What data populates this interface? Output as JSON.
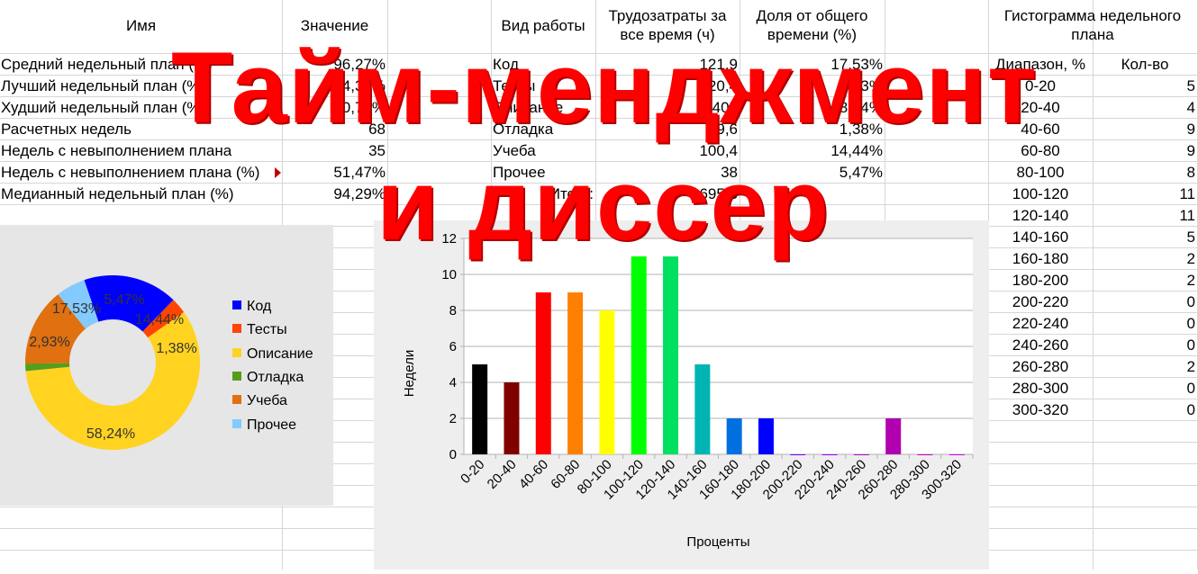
{
  "overlay": {
    "line1": "Тайм-менджмент",
    "line2": "и диссер"
  },
  "stats_table": {
    "col_name": "Имя",
    "col_value": "Значение",
    "rows": [
      {
        "name": "Средний недельный план (%)",
        "value": "96,27%"
      },
      {
        "name": "Лучший недельный план (%)",
        "value": "274,34%"
      },
      {
        "name": "Худший недельный план (%)",
        "value": "0,72%"
      },
      {
        "name": "Расчетных недель",
        "value": "68"
      },
      {
        "name": "Недель с невыполнением плана",
        "value": "35"
      },
      {
        "name": "Недель с невыполнением плана (%)",
        "value": "51,47%"
      },
      {
        "name": "Медианный недельный план (%)",
        "value": "94,29%"
      }
    ]
  },
  "work_table": {
    "col_type": "Вид работы",
    "col_hours_1": "Трудозатраты за",
    "col_hours_2": "все время (ч)",
    "col_share_1": "Доля от общего",
    "col_share_2": "времени (%)",
    "rows": [
      {
        "type": "Код",
        "hours": "121,9",
        "share": "17,53%"
      },
      {
        "type": "Тесты",
        "hours": "20,4",
        "share": "2,93%"
      },
      {
        "type": "Описание",
        "hours": "405",
        "share": "58,24%"
      },
      {
        "type": "Отладка",
        "hours": "9,6",
        "share": "1,38%"
      },
      {
        "type": "Учеба",
        "hours": "100,4",
        "share": "14,44%"
      },
      {
        "type": "Прочее",
        "hours": "38",
        "share": "5,47%"
      }
    ],
    "total_label": "Итого:",
    "total_value": "695,3"
  },
  "hist_table": {
    "title_1": "Гистограмма недельного",
    "title_2": "плана",
    "col_range": "Диапазон, %",
    "col_count": "Кол-во",
    "rows": [
      {
        "range": "0-20",
        "count": "5"
      },
      {
        "range": "20-40",
        "count": "4"
      },
      {
        "range": "40-60",
        "count": "9"
      },
      {
        "range": "60-80",
        "count": "9"
      },
      {
        "range": "80-100",
        "count": "8"
      },
      {
        "range": "100-120",
        "count": "11"
      },
      {
        "range": "120-140",
        "count": "11"
      },
      {
        "range": "140-160",
        "count": "5"
      },
      {
        "range": "160-180",
        "count": "2"
      },
      {
        "range": "180-200",
        "count": "2"
      },
      {
        "range": "200-220",
        "count": "0"
      },
      {
        "range": "220-240",
        "count": "0"
      },
      {
        "range": "240-260",
        "count": "0"
      },
      {
        "range": "260-280",
        "count": "2"
      },
      {
        "range": "280-300",
        "count": "0"
      },
      {
        "range": "300-320",
        "count": "0"
      }
    ]
  },
  "chart_data": [
    {
      "type": "pie",
      "donut": true,
      "categories": [
        "Код",
        "Тесты",
        "Описание",
        "Отладка",
        "Учеба",
        "Прочее"
      ],
      "values": [
        17.53,
        2.93,
        58.24,
        1.38,
        14.44,
        5.47
      ],
      "labels": [
        "17,53%",
        "2,93%",
        "58,24%",
        "1,38%",
        "14,44%",
        "5,47%"
      ],
      "colors": [
        "#0000ff",
        "#ff4500",
        "#ffd320",
        "#579d1c",
        "#e07010",
        "#83caff"
      ],
      "legend": "right"
    },
    {
      "type": "bar",
      "categories": [
        "0-20",
        "20-40",
        "40-60",
        "60-80",
        "80-100",
        "100-120",
        "120-140",
        "140-160",
        "160-180",
        "180-200",
        "200-220",
        "220-240",
        "240-260",
        "260-280",
        "280-300",
        "300-320"
      ],
      "values": [
        5,
        4,
        9,
        9,
        8,
        11,
        11,
        5,
        2,
        2,
        0,
        0,
        0,
        2,
        0,
        0
      ],
      "colors": [
        "#000000",
        "#800000",
        "#ff0000",
        "#ff8000",
        "#ffff00",
        "#00ff00",
        "#00e060",
        "#00b4b4",
        "#0070e0",
        "#0000ff",
        "#8000ff",
        "#a000ff",
        "#c000e0",
        "#b000b0",
        "#d000d0",
        "#e000ff"
      ],
      "xlabel": "Проценты",
      "ylabel": "Недели",
      "ylim": [
        0,
        12
      ],
      "yticks": [
        0,
        2,
        4,
        6,
        8,
        10,
        12
      ],
      "grid": true
    }
  ]
}
